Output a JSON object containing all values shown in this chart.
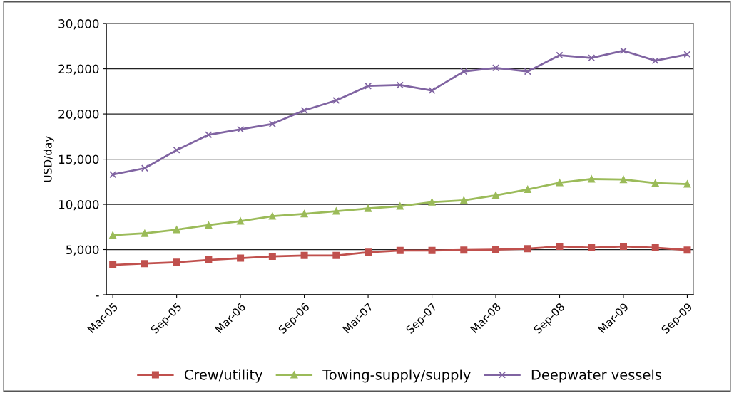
{
  "chart_data": {
    "type": "line",
    "ylabel": "USD/day",
    "categories": [
      "Mar-05",
      null,
      "Sep-05",
      null,
      "Mar-06",
      null,
      "Sep-06",
      null,
      "Mar-07",
      null,
      "Sep-07",
      null,
      "Mar-08",
      null,
      "Sep-08",
      null,
      "Mar-09",
      null,
      "Sep-09"
    ],
    "series": [
      {
        "name": "Crew/utility",
        "color": "#c0504d",
        "marker": "square",
        "values": [
          3300,
          3450,
          3600,
          3850,
          4050,
          4250,
          4350,
          4350,
          4700,
          4900,
          4900,
          4950,
          5000,
          5100,
          5350,
          5200,
          5350,
          5200,
          4950
        ]
      },
      {
        "name": "Towing-supply/supply",
        "color": "#9bbb59",
        "marker": "triangle",
        "values": [
          6600,
          6800,
          7200,
          7700,
          8150,
          8700,
          8950,
          9250,
          9550,
          9800,
          10250,
          10450,
          11000,
          11650,
          12400,
          12800,
          12750,
          12350,
          12250
        ]
      },
      {
        "name": "Deepwater vessels",
        "color": "#8064a2",
        "marker": "cross",
        "values": [
          13300,
          14000,
          16000,
          17700,
          18300,
          18900,
          20400,
          21500,
          23100,
          23200,
          22600,
          24700,
          25100,
          24700,
          26500,
          26200,
          27000,
          25900,
          26600
        ]
      }
    ],
    "ylim": [
      0,
      30000
    ],
    "yticks": [
      {
        "value": 0,
        "label": "-"
      },
      {
        "value": 5000,
        "label": "5,000"
      },
      {
        "value": 10000,
        "label": "10,000"
      },
      {
        "value": 15000,
        "label": "15,000"
      },
      {
        "value": 20000,
        "label": "20,000"
      },
      {
        "value": 25000,
        "label": "25,000"
      },
      {
        "value": 30000,
        "label": "30,000"
      }
    ],
    "grid": "y",
    "legend": "bottom"
  }
}
